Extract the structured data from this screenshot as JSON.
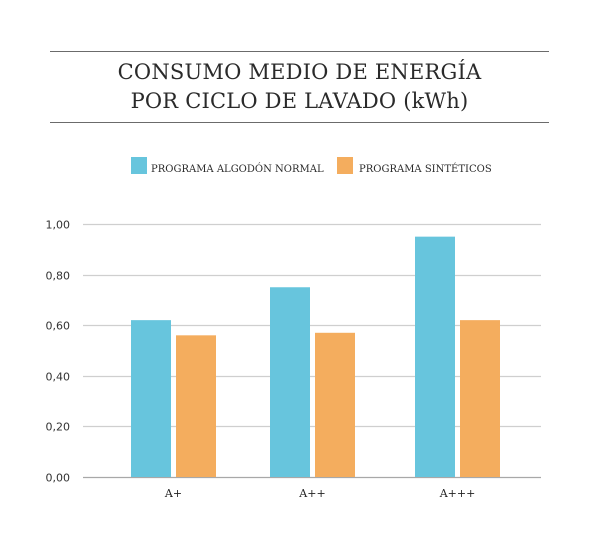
{
  "chart_data": {
    "type": "bar",
    "title_lines": [
      "CONSUMO MEDIO DE ENERGÍA",
      "POR CICLO DE LAVADO (kWh)"
    ],
    "xlabel": "",
    "ylabel": "",
    "categories": [
      "A+",
      "A++",
      "A+++"
    ],
    "series": [
      {
        "name": "PROGRAMA ALGODÓN NORMAL",
        "color": "#67C5DD",
        "values": [
          0.62,
          0.75,
          0.95
        ]
      },
      {
        "name": "PROGRAMA SINTÉTICOS",
        "color": "#F4AD5E",
        "values": [
          0.56,
          0.57,
          0.62
        ]
      }
    ],
    "ylim": [
      0,
      1.0
    ],
    "yticks": [
      0.0,
      0.2,
      0.4,
      0.6,
      0.8,
      1.0
    ],
    "ytick_labels": [
      "0,00",
      "0,20",
      "0,40",
      "0,60",
      "0,80",
      "1,00"
    ],
    "grid": true,
    "legend_position": "top-center"
  }
}
